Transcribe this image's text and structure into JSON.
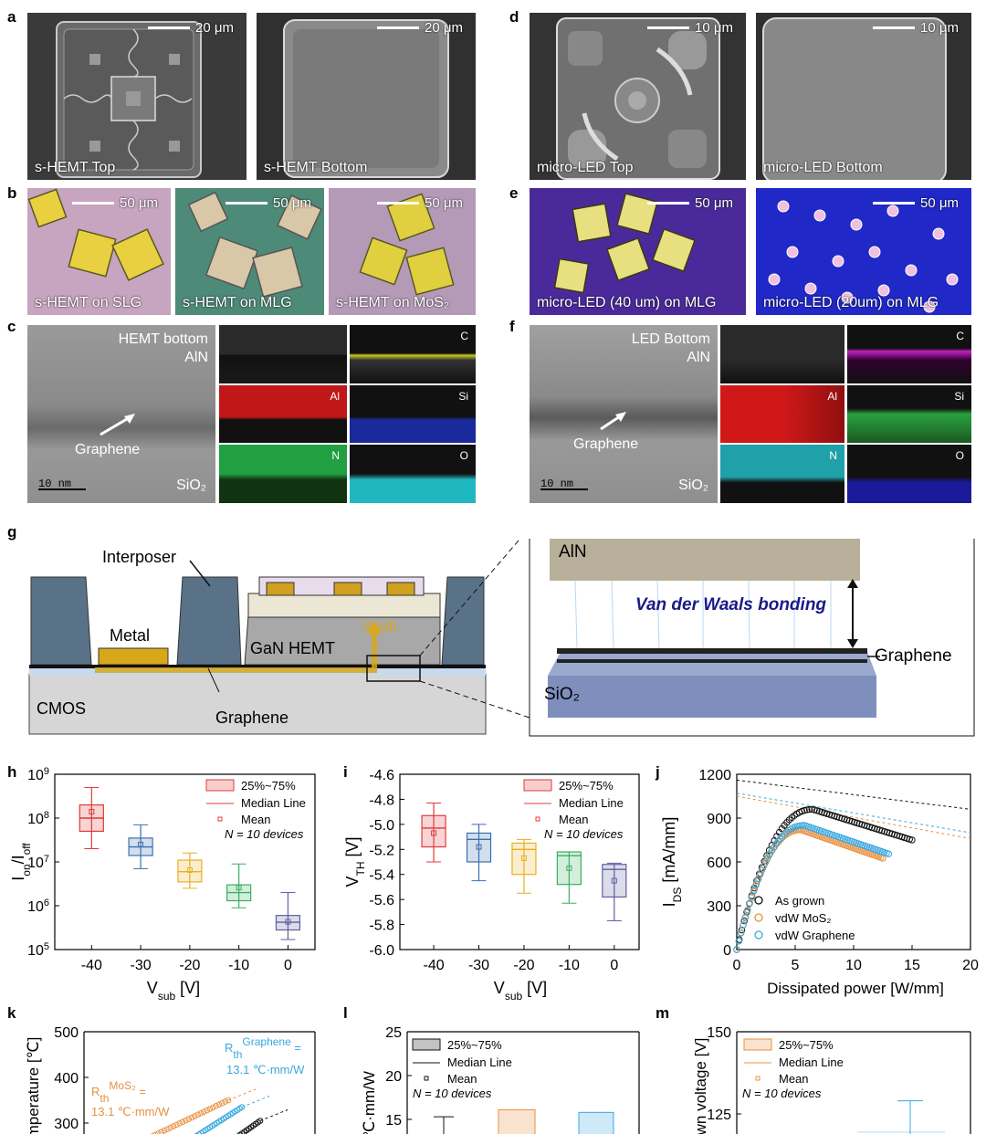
{
  "panel_labels": {
    "a": "a",
    "b": "b",
    "c": "c",
    "d": "d",
    "e": "e",
    "f": "f",
    "g": "g",
    "h": "h",
    "i": "i",
    "j": "j",
    "k": "k",
    "l": "l",
    "m": "m"
  },
  "row_a": {
    "img1": {
      "caption": "s-HEMT Top",
      "scale": "20 μm"
    },
    "img2": {
      "caption": "s-HEMT Bottom",
      "scale": "20 μm"
    },
    "img3": {
      "caption": "micro-LED Top",
      "scale": "10 μm"
    },
    "img4": {
      "caption": "micro-LED Bottom",
      "scale": "10 μm"
    }
  },
  "row_b": {
    "img1": {
      "caption": "s-HEMT on SLG",
      "scale": "50 μm"
    },
    "img2": {
      "caption": "s-HEMT on MLG",
      "scale": "50 μm"
    },
    "img3": {
      "caption": "s-HEMT on MoS₂",
      "scale": "50 μm"
    },
    "img4": {
      "caption": "micro-LED (40 um) on MLG",
      "scale": "50 μm"
    },
    "img5": {
      "caption": "micro-LED (20um) on MLG",
      "scale": "50 μm"
    }
  },
  "row_c": {
    "tem_left": {
      "title1": "HEMT bottom",
      "title2": "AlN",
      "arrow": "Graphene",
      "substrate": "SiO₂",
      "scale": "10 nm"
    },
    "tem_right": {
      "title1": "LED Bottom",
      "title2": "AlN",
      "arrow": "Graphene",
      "substrate": "SiO₂",
      "scale": "10 nm"
    },
    "eds_labels": [
      "C",
      "Al",
      "Si",
      "N",
      "O"
    ]
  },
  "diagram_g": {
    "interposer": "Interposer",
    "metal": "Metal",
    "gan": "GaN HEMT",
    "vsub": "Vsub",
    "cmos": "CMOS",
    "graphene": "Graphene"
  },
  "diagram_g2": {
    "aln": "AlN",
    "vdw": "Van der Waals bonding",
    "graphene": "Graphene",
    "sio2": "SiO₂"
  },
  "legend_box": {
    "iqr": "25%~75%",
    "median": "Median Line",
    "mean": "Mean",
    "n": "N = 10 devices"
  },
  "chart_data": [
    {
      "id": "h",
      "type": "box",
      "xlabel": "Vsub [V]",
      "ylabel": "Ion/Ioff",
      "yscale": "log",
      "ylim": [
        100000,
        1000000000
      ],
      "categories": [
        "-40",
        "-30",
        "-20",
        "-10",
        "0"
      ],
      "colors": [
        "#e03a3a",
        "#3a6fb0",
        "#e8b020",
        "#3ab060",
        "#6060a0"
      ],
      "boxes": [
        {
          "min": 20000000,
          "q1": 50000000,
          "median": 100000000,
          "q3": 200000000,
          "max": 500000000,
          "mean": 140000000
        },
        {
          "min": 7000000,
          "q1": 14000000,
          "median": 22000000,
          "q3": 35000000,
          "max": 70000000,
          "mean": 25000000
        },
        {
          "min": 2500000,
          "q1": 3500000,
          "median": 6000000,
          "q3": 11000000,
          "max": 16000000,
          "mean": 6500000
        },
        {
          "min": 900000,
          "q1": 1300000,
          "median": 2000000,
          "q3": 3000000,
          "max": 9000000,
          "mean": 2600000
        },
        {
          "min": 170000,
          "q1": 280000,
          "median": 420000,
          "q3": 600000,
          "max": 2000000,
          "mean": 430000
        }
      ]
    },
    {
      "id": "i",
      "type": "box",
      "xlabel": "Vsub [V]",
      "ylabel": "VTH [V]",
      "ylim": [
        -6.0,
        -4.6
      ],
      "categories": [
        "-40",
        "-30",
        "-20",
        "-10",
        "0"
      ],
      "colors": [
        "#e03a3a",
        "#3a6fb0",
        "#e8b020",
        "#3ab060",
        "#6060a0"
      ],
      "boxes": [
        {
          "min": -5.3,
          "q1": -5.18,
          "median": -5.03,
          "q3": -4.93,
          "max": -4.83,
          "mean": -5.07
        },
        {
          "min": -5.45,
          "q1": -5.3,
          "median": -5.12,
          "q3": -5.07,
          "max": -5.0,
          "mean": -5.18
        },
        {
          "min": -5.55,
          "q1": -5.4,
          "median": -5.2,
          "q3": -5.15,
          "max": -5.12,
          "mean": -5.27
        },
        {
          "min": -5.63,
          "q1": -5.48,
          "median": -5.25,
          "q3": -5.22,
          "max": -5.22,
          "mean": -5.35
        },
        {
          "min": -5.77,
          "q1": -5.58,
          "median": -5.36,
          "q3": -5.32,
          "max": -5.31,
          "mean": -5.45
        }
      ]
    },
    {
      "id": "j",
      "type": "scatter",
      "xlabel": "Dissipated power [W/mm]",
      "ylabel": "IDS [mA/mm]",
      "xlim": [
        0,
        20
      ],
      "ylim": [
        0,
        1200
      ],
      "series": [
        {
          "name": "As grown",
          "color": "#111111",
          "peak": 960,
          "peak_x": 6.5,
          "end_x": 15,
          "end_y": 750
        },
        {
          "name": "vdW MoS₂",
          "color": "#e89040",
          "peak": 820,
          "peak_x": 5.5,
          "end_x": 12.5,
          "end_y": 625
        },
        {
          "name": "vdW Graphene",
          "color": "#3aa8e0",
          "peak": 850,
          "peak_x": 5.8,
          "end_x": 13,
          "end_y": 655
        }
      ]
    },
    {
      "id": "k",
      "type": "line",
      "ylabel": "Temperature [℃]",
      "ylim": [
        200,
        500
      ],
      "annotations": [
        "R_th^Graphene = 13.1 ℃·mm/W",
        "R_th^MoS₂ = 13.1 ℃·mm/W"
      ]
    },
    {
      "id": "l",
      "type": "box",
      "ylabel": "℃·mm/W",
      "ylim": [
        10,
        25
      ]
    },
    {
      "id": "m",
      "type": "box",
      "ylabel": "Breakdown voltage [V]",
      "ylim": [
        100,
        150
      ]
    }
  ],
  "k_labels": {
    "ylabel": "Temperature [℃]",
    "ann1_a": "R",
    "ann1_sup": "Graphene",
    "ann1_sub": "th",
    "ann1_b": "=",
    "ann1_c": "13.1 ℃·mm/W",
    "ann2_a": "R",
    "ann2_sup": "MoS₂",
    "ann2_sub": "th",
    "ann2_b": "=",
    "ann2_c": "13.1 ℃·mm/W"
  },
  "l_labels": {
    "ylabel": "℃·mm/W"
  },
  "m_labels": {
    "ylabel": "wn voltage [V]"
  },
  "axis_h": {
    "xlabel": "V",
    "xlabel_sub": "sub",
    "xlabel_unit": " [V]",
    "ylabel": "I",
    "ylabel_sub1": "on",
    "ylabel_mid": "/I",
    "ylabel_sub2": "off"
  },
  "axis_i": {
    "xlabel": "V",
    "xlabel_sub": "sub",
    "xlabel_unit": " [V]",
    "ylabel": "V",
    "ylabel_sub": "TH",
    "ylabel_unit": " [V]"
  },
  "axis_j": {
    "xlabel": "Dissipated power [W/mm]",
    "ylabel": "I",
    "ylabel_sub": "DS",
    "ylabel_unit": " [mA/mm]"
  },
  "colors": {
    "sem_dark": "#2b2b2b",
    "optical_pink": "#c7a4c0",
    "optical_teal": "#4e8a78",
    "optical_violet": "#b59ab8",
    "led_purple": "#4a2a9a",
    "led_blue": "#2028c8"
  }
}
